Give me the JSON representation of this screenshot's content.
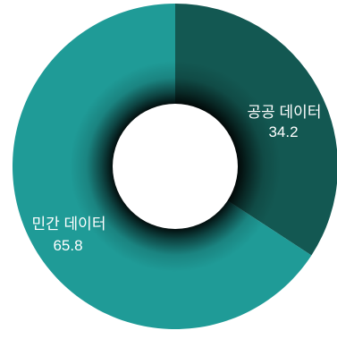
{
  "chart_data": {
    "type": "pie",
    "variant": "donut",
    "start_angle_deg": 0,
    "direction": "clockwise",
    "slices": [
      {
        "label": "공공 데이터",
        "value": 34.2,
        "display_value": "34.2",
        "color": "#135852"
      },
      {
        "label": "민간 데이터",
        "value": 65.8,
        "display_value": "65.8",
        "color": "#1f9b97"
      }
    ],
    "center_color": "#ffffff",
    "inner_shadow_color": "#000000",
    "legend": "none"
  }
}
